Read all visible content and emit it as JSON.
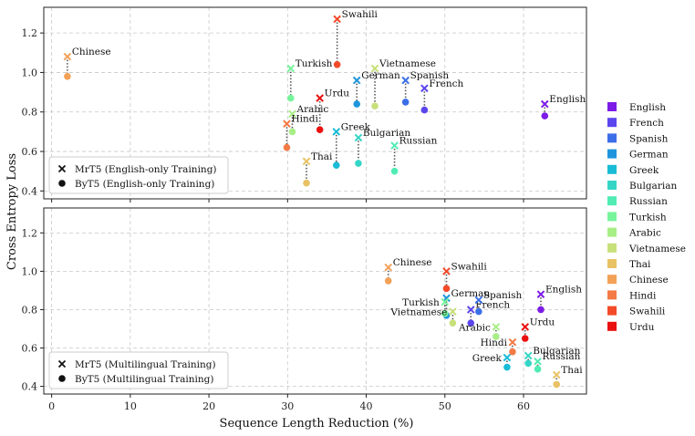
{
  "chart_data": [
    {
      "type": "scatter",
      "panel": "top",
      "xlabel": "Sequence Length Reduction (%)",
      "ylabel": "Cross Entropy Loss",
      "xlim": [
        -1,
        68
      ],
      "ylim": [
        0.36,
        1.33
      ],
      "yticks": [
        0.4,
        0.6,
        0.8,
        1.0,
        1.2
      ],
      "xticks": [
        0,
        10,
        20,
        30,
        40,
        50,
        60
      ],
      "grid": true,
      "legend": {
        "position": "bottom-left",
        "entries": [
          {
            "marker": "x",
            "label": "MrT5 (English-only Training)"
          },
          {
            "marker": "circle",
            "label": "ByT5 (English-only Training)"
          }
        ]
      },
      "points": [
        {
          "lang": "English",
          "x": 62.7,
          "mrt5": 0.84,
          "byt5": 0.78,
          "label_pos": "right"
        },
        {
          "lang": "French",
          "x": 47.4,
          "mrt5": 0.92,
          "byt5": 0.81,
          "label_pos": "right"
        },
        {
          "lang": "Spanish",
          "x": 45.0,
          "mrt5": 0.96,
          "byt5": 0.85,
          "label_pos": "right"
        },
        {
          "lang": "German",
          "x": 38.8,
          "mrt5": 0.96,
          "byt5": 0.84,
          "label_pos": "right"
        },
        {
          "lang": "Greek",
          "x": 36.2,
          "mrt5": 0.7,
          "byt5": 0.53,
          "label_pos": "right"
        },
        {
          "lang": "Bulgarian",
          "x": 39.0,
          "mrt5": 0.67,
          "byt5": 0.54,
          "label_pos": "right"
        },
        {
          "lang": "Russian",
          "x": 43.6,
          "mrt5": 0.63,
          "byt5": 0.5,
          "label_pos": "right"
        },
        {
          "lang": "Turkish",
          "x": 30.4,
          "mrt5": 1.02,
          "byt5": 0.87,
          "label_pos": "right"
        },
        {
          "lang": "Arabic",
          "x": 30.6,
          "mrt5": 0.79,
          "byt5": 0.7,
          "label_pos": "right"
        },
        {
          "lang": "Vietnamese",
          "x": 41.1,
          "mrt5": 1.02,
          "byt5": 0.83,
          "label_pos": "right"
        },
        {
          "lang": "Thai",
          "x": 32.4,
          "mrt5": 0.55,
          "byt5": 0.44,
          "label_pos": "right"
        },
        {
          "lang": "Chinese",
          "x": 2.0,
          "mrt5": 1.08,
          "byt5": 0.98,
          "label_pos": "right"
        },
        {
          "lang": "Hindi",
          "x": 29.9,
          "mrt5": 0.74,
          "byt5": 0.62,
          "label_pos": "right"
        },
        {
          "lang": "Swahili",
          "x": 36.3,
          "mrt5": 1.27,
          "byt5": 1.04,
          "label_pos": "right"
        },
        {
          "lang": "Urdu",
          "x": 34.1,
          "mrt5": 0.87,
          "byt5": 0.71,
          "label_pos": "right"
        }
      ]
    },
    {
      "type": "scatter",
      "panel": "bottom",
      "xlabel": "Sequence Length Reduction (%)",
      "ylabel": "Cross Entropy Loss",
      "xlim": [
        -1,
        68
      ],
      "ylim": [
        0.36,
        1.33
      ],
      "yticks": [
        0.4,
        0.6,
        0.8,
        1.0,
        1.2
      ],
      "xticks": [
        0,
        10,
        20,
        30,
        40,
        50,
        60
      ],
      "grid": true,
      "legend": {
        "position": "bottom-left",
        "entries": [
          {
            "marker": "x",
            "label": "MrT5 (Multilingual Training)"
          },
          {
            "marker": "circle",
            "label": "ByT5 (Multilingual Training)"
          }
        ]
      },
      "points": [
        {
          "lang": "English",
          "x": 62.2,
          "mrt5": 0.88,
          "byt5": 0.8,
          "label_pos": "right"
        },
        {
          "lang": "French",
          "x": 53.3,
          "mrt5": 0.8,
          "byt5": 0.73,
          "label_pos": "right"
        },
        {
          "lang": "Spanish",
          "x": 54.3,
          "mrt5": 0.85,
          "byt5": 0.79,
          "label_pos": "right"
        },
        {
          "lang": "German",
          "x": 50.2,
          "mrt5": 0.86,
          "byt5": 0.77,
          "label_pos": "right"
        },
        {
          "lang": "Greek",
          "x": 57.9,
          "mrt5": 0.55,
          "byt5": 0.5,
          "label_pos": "left"
        },
        {
          "lang": "Bulgarian",
          "x": 60.6,
          "mrt5": 0.56,
          "byt5": 0.52,
          "label_pos": "right"
        },
        {
          "lang": "Russian",
          "x": 61.8,
          "mrt5": 0.53,
          "byt5": 0.49,
          "label_pos": "right"
        },
        {
          "lang": "Turkish",
          "x": 50.0,
          "mrt5": 0.84,
          "byt5": 0.78,
          "label_pos": "left"
        },
        {
          "lang": "Arabic",
          "x": 56.5,
          "mrt5": 0.71,
          "byt5": 0.66,
          "label_pos": "left"
        },
        {
          "lang": "Vietnamese",
          "x": 51.0,
          "mrt5": 0.79,
          "byt5": 0.73,
          "label_pos": "left"
        },
        {
          "lang": "Thai",
          "x": 64.2,
          "mrt5": 0.46,
          "byt5": 0.41,
          "label_pos": "right"
        },
        {
          "lang": "Chinese",
          "x": 42.8,
          "mrt5": 1.02,
          "byt5": 0.95,
          "label_pos": "right"
        },
        {
          "lang": "Hindi",
          "x": 58.6,
          "mrt5": 0.63,
          "byt5": 0.58,
          "label_pos": "left"
        },
        {
          "lang": "Swahili",
          "x": 50.2,
          "mrt5": 1.0,
          "byt5": 0.91,
          "label_pos": "right"
        },
        {
          "lang": "Urdu",
          "x": 60.2,
          "mrt5": 0.71,
          "byt5": 0.65,
          "label_pos": "right"
        }
      ]
    }
  ],
  "legend": {
    "languages": [
      {
        "name": "English",
        "color": "#7d1ce6"
      },
      {
        "name": "French",
        "color": "#5b46ee"
      },
      {
        "name": "Spanish",
        "color": "#3b6fe8"
      },
      {
        "name": "German",
        "color": "#1f96dc"
      },
      {
        "name": "Greek",
        "color": "#19bcd6"
      },
      {
        "name": "Bulgarian",
        "color": "#35d6c6"
      },
      {
        "name": "Russian",
        "color": "#50ecb4"
      },
      {
        "name": "Turkish",
        "color": "#78f49c"
      },
      {
        "name": "Arabic",
        "color": "#a8ee86"
      },
      {
        "name": "Vietnamese",
        "color": "#c8e07a"
      },
      {
        "name": "Thai",
        "color": "#e8c264"
      },
      {
        "name": "Chinese",
        "color": "#f3a157"
      },
      {
        "name": "Hindi",
        "color": "#f47a46"
      },
      {
        "name": "Swahili",
        "color": "#f34a2a"
      },
      {
        "name": "Urdu",
        "color": "#ea1010"
      }
    ]
  }
}
